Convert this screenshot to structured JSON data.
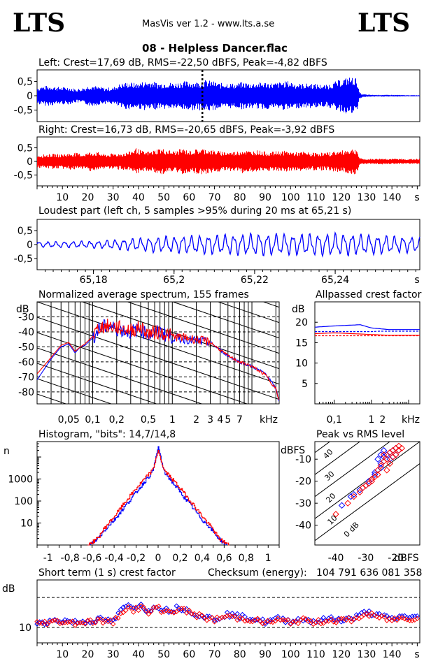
{
  "header": {
    "logo_left": "LTS",
    "logo_right": "LTS",
    "app_title": "MasVis ver 1.2 - www.lts.a.se",
    "track_title": "08 - Helpless Dancer.flac"
  },
  "colors": {
    "left": "#0000ff",
    "right": "#ff0000",
    "axis": "#000000"
  },
  "chart_data": [
    {
      "id": "left_waveform",
      "type": "area",
      "title": "Left: Crest=17,69 dB, RMS=-22,50 dBFS, Peak=-4,82 dBFS",
      "crest_db": 17.69,
      "rms_dbfs": -22.5,
      "peak_dbfs": -4.82,
      "ylim": [
        -0.9,
        0.9
      ],
      "xlim": [
        0,
        151
      ],
      "y_ticks": [
        "0,5",
        "0",
        "-0,5"
      ],
      "marker_at_s": 65.21,
      "series": [
        {
          "color": "#0000ff",
          "x": [
            0,
            3,
            6,
            9,
            12,
            15,
            18,
            21,
            24,
            27,
            30,
            33,
            36,
            39,
            42,
            45,
            48,
            51,
            54,
            57,
            60,
            63,
            66,
            69,
            72,
            75,
            78,
            81,
            84,
            87,
            90,
            93,
            96,
            99,
            102,
            105,
            108,
            111,
            114,
            117,
            120,
            123,
            126,
            127,
            128,
            130,
            133,
            136,
            139,
            142,
            145,
            148,
            151
          ],
          "amp": [
            0.3,
            0.35,
            0.34,
            0.3,
            0.31,
            0.24,
            0.28,
            0.38,
            0.32,
            0.28,
            0.3,
            0.44,
            0.48,
            0.44,
            0.5,
            0.52,
            0.44,
            0.48,
            0.45,
            0.5,
            0.52,
            0.48,
            0.55,
            0.52,
            0.44,
            0.46,
            0.42,
            0.48,
            0.44,
            0.46,
            0.48,
            0.44,
            0.48,
            0.52,
            0.44,
            0.42,
            0.44,
            0.4,
            0.38,
            0.48,
            0.58,
            0.66,
            0.62,
            0.12,
            0.06,
            0.04,
            0.03,
            0.03,
            0.03,
            0.03,
            0.02,
            0.02,
            0.02
          ]
        }
      ]
    },
    {
      "id": "right_waveform",
      "type": "area",
      "title": "Right: Crest=16,73 dB, RMS=-20,65 dBFS, Peak=-3,92 dBFS",
      "crest_db": 16.73,
      "rms_dbfs": -20.65,
      "peak_dbfs": -3.92,
      "ylim": [
        -0.9,
        0.9
      ],
      "xlim": [
        0,
        151
      ],
      "y_ticks": [
        "0,5",
        "0",
        "-0,5"
      ],
      "x_ticks": [
        "10",
        "20",
        "30",
        "40",
        "50",
        "60",
        "70",
        "80",
        "90",
        "100",
        "110",
        "120",
        "130",
        "140"
      ],
      "x_unit": "s",
      "series": [
        {
          "color": "#ff0000",
          "x": [
            0,
            3,
            6,
            9,
            12,
            15,
            18,
            21,
            24,
            27,
            30,
            33,
            36,
            39,
            42,
            45,
            48,
            51,
            54,
            57,
            60,
            63,
            66,
            69,
            72,
            75,
            78,
            81,
            84,
            87,
            90,
            93,
            96,
            99,
            102,
            105,
            108,
            111,
            114,
            117,
            120,
            123,
            126,
            127,
            128,
            130,
            133,
            136,
            139,
            142,
            145,
            148,
            151
          ],
          "amp": [
            0.24,
            0.26,
            0.28,
            0.27,
            0.3,
            0.32,
            0.28,
            0.36,
            0.34,
            0.26,
            0.3,
            0.3,
            0.36,
            0.5,
            0.36,
            0.38,
            0.5,
            0.44,
            0.38,
            0.48,
            0.4,
            0.46,
            0.48,
            0.42,
            0.38,
            0.36,
            0.36,
            0.44,
            0.38,
            0.42,
            0.36,
            0.36,
            0.4,
            0.38,
            0.34,
            0.36,
            0.32,
            0.34,
            0.32,
            0.38,
            0.4,
            0.46,
            0.48,
            0.14,
            0.1,
            0.09,
            0.1,
            0.11,
            0.1,
            0.1,
            0.09,
            0.09,
            0.1
          ]
        }
      ]
    },
    {
      "id": "loudest_part",
      "type": "line",
      "title": "Loudest part (left  ch, 5 samples >95% during 20 ms at 65,21 s)",
      "xlim": [
        65.166,
        65.261
      ],
      "ylim": [
        -0.9,
        0.9
      ],
      "y_ticks": [
        "0,5",
        "0",
        "-0,5"
      ],
      "x_ticks": [
        "65,18",
        "65,2",
        "65,22",
        "65,24"
      ],
      "x_unit": "s",
      "series": [
        {
          "color": "#0000ff",
          "envelope_x": [
            65.166,
            65.18,
            65.19,
            65.2,
            65.21,
            65.22,
            65.23,
            65.24,
            65.25,
            65.261
          ],
          "envelope_amp": [
            0.08,
            0.1,
            0.18,
            0.24,
            0.28,
            0.32,
            0.3,
            0.32,
            0.28,
            0.2
          ],
          "period_ms": 2.1
        }
      ]
    },
    {
      "id": "spectrum",
      "type": "line",
      "title": "Normalized average spectrum, 155 frames",
      "frames": 155,
      "ylabel": "dB",
      "xlabel": "kHz",
      "xlim_khz": [
        0.02,
        22
      ],
      "ylim": [
        -88,
        -20
      ],
      "y_ticks": [
        "-30",
        "-40",
        "-50",
        "-60",
        "-70",
        "-80"
      ],
      "x_ticks": [
        "0,05",
        "0,1",
        "0,2",
        "0,5",
        "1",
        "2",
        "3",
        "4",
        "5",
        "7"
      ],
      "series": [
        {
          "color": "#0000ff",
          "f_khz": [
            0.02,
            0.03,
            0.04,
            0.05,
            0.06,
            0.07,
            0.08,
            0.1,
            0.12,
            0.15,
            0.2,
            0.3,
            0.4,
            0.5,
            0.7,
            1,
            1.5,
            2,
            3,
            4,
            5,
            7,
            10,
            15,
            20,
            22
          ],
          "db": [
            -72,
            -58,
            -50,
            -48,
            -54,
            -50,
            -49,
            -44,
            -38,
            -36,
            -38,
            -40,
            -38,
            -42,
            -40,
            -44,
            -45,
            -46,
            -47,
            -52,
            -56,
            -60,
            -63,
            -68,
            -78,
            -86
          ]
        },
        {
          "color": "#ff0000",
          "f_khz": [
            0.02,
            0.03,
            0.04,
            0.05,
            0.06,
            0.07,
            0.08,
            0.1,
            0.12,
            0.15,
            0.2,
            0.3,
            0.4,
            0.5,
            0.7,
            1,
            1.5,
            2,
            3,
            4,
            5,
            7,
            10,
            15,
            20,
            22
          ],
          "db": [
            -68,
            -57,
            -49,
            -47,
            -53,
            -50,
            -48,
            -43,
            -37,
            -36,
            -37,
            -39,
            -37,
            -41,
            -40,
            -43,
            -44,
            -45,
            -47,
            -52,
            -56,
            -60,
            -63,
            -69,
            -78,
            -86
          ]
        }
      ]
    },
    {
      "id": "allpassed_crest",
      "type": "line",
      "title": "Allpassed crest factor",
      "ylabel": "dB",
      "xlabel": "kHz",
      "xlim_khz": [
        0.03,
        20
      ],
      "ylim": [
        0,
        25
      ],
      "y_ticks": [
        "20",
        "15",
        "10",
        "5"
      ],
      "x_ticks": [
        "0,1",
        "1",
        "2"
      ],
      "series": [
        {
          "color": "#0000ff",
          "f_khz": [
            0.03,
            0.1,
            0.5,
            1,
            3,
            20
          ],
          "db": [
            18.8,
            19.1,
            19.4,
            18.6,
            18.2,
            18.2
          ]
        },
        {
          "color": "#0000ff",
          "style": "dashed",
          "f_khz": [
            0.03,
            1,
            1.5,
            20
          ],
          "db": [
            17.7,
            17.7,
            17.8,
            17.8
          ]
        },
        {
          "color": "#ff0000",
          "f_khz": [
            0.03,
            0.1,
            1,
            3,
            20
          ],
          "db": [
            17.2,
            17.4,
            17.0,
            16.8,
            16.8
          ]
        },
        {
          "color": "#ff0000",
          "style": "dashed",
          "f_khz": [
            0.03,
            1,
            20
          ],
          "db": [
            16.7,
            16.7,
            16.7
          ]
        }
      ]
    },
    {
      "id": "histogram",
      "type": "line",
      "title": "Histogram, \"bits\": 14,7/14,8",
      "ylabel": "n",
      "yscale": "log",
      "xlim": [
        -1.1,
        1.1
      ],
      "x_ticks": [
        "-1",
        "-0,8",
        "-0,6",
        "-0,4",
        "-0,2",
        "0",
        "0,2",
        "0,4",
        "0,6",
        "0,8",
        "1"
      ],
      "y_ticks": [
        "1000",
        "100",
        "10"
      ],
      "series": [
        {
          "color": "#0000ff",
          "x": [
            -0.62,
            -0.55,
            -0.5,
            -0.45,
            -0.4,
            -0.3,
            -0.2,
            -0.1,
            -0.05,
            0,
            0.05,
            0.1,
            0.2,
            0.3,
            0.4,
            0.45,
            0.5,
            0.55,
            0.62
          ],
          "n": [
            1,
            2,
            4,
            8,
            14,
            60,
            250,
            1100,
            2200,
            30000,
            2200,
            1100,
            250,
            60,
            14,
            8,
            4,
            2,
            1
          ]
        },
        {
          "color": "#ff0000",
          "x": [
            -0.64,
            -0.55,
            -0.5,
            -0.45,
            -0.4,
            -0.3,
            -0.2,
            -0.1,
            -0.05,
            0,
            0.05,
            0.1,
            0.2,
            0.3,
            0.4,
            0.45,
            0.5,
            0.55,
            0.64
          ],
          "n": [
            1,
            2,
            5,
            10,
            20,
            90,
            380,
            1400,
            2600,
            20000,
            2600,
            1400,
            380,
            90,
            20,
            10,
            5,
            2,
            1
          ]
        }
      ]
    },
    {
      "id": "peak_vs_rms",
      "type": "scatter",
      "title": "Peak vs RMS level",
      "xlabel": "dBFS",
      "ylabel": "dBFS",
      "xlim": [
        -47,
        -12
      ],
      "ylim": [
        -49,
        -2
      ],
      "x_ticks": [
        "-40",
        "-30",
        "-20"
      ],
      "y_ticks": [
        "-10",
        "-20",
        "-30",
        "-40"
      ],
      "diagonal_labels": [
        "40",
        "30",
        "20",
        "10",
        "0 dB"
      ],
      "series": [
        {
          "color": "#0000ff",
          "x": [
            -38,
            -35,
            -34,
            -32,
            -30,
            -29,
            -28,
            -27,
            -26,
            -25,
            -25,
            -24,
            -24,
            -23,
            -22,
            -22,
            -21,
            -21,
            -20,
            -20,
            -19,
            -25,
            -27,
            -29
          ],
          "y": [
            -31,
            -27,
            -26,
            -24,
            -22,
            -21,
            -19,
            -16,
            -10,
            -8,
            -12,
            -9,
            -6,
            -8,
            -10,
            -7,
            -9,
            -6,
            -5,
            -8,
            -6,
            -14,
            -17,
            -20
          ]
        },
        {
          "color": "#ff0000",
          "x": [
            -40,
            -36,
            -34,
            -32,
            -31,
            -29,
            -28,
            -27,
            -26,
            -25,
            -24,
            -24,
            -23,
            -22,
            -22,
            -21,
            -21,
            -20,
            -20,
            -19,
            -19,
            -23,
            -26,
            -28,
            -30,
            -18
          ],
          "y": [
            -35,
            -30,
            -27,
            -25,
            -23,
            -21,
            -20,
            -18,
            -15,
            -13,
            -11,
            -8,
            -10,
            -7,
            -12,
            -6,
            -9,
            -5,
            -8,
            -6,
            -4,
            -15,
            -17,
            -19,
            -22,
            -5
          ]
        }
      ]
    },
    {
      "id": "short_term_crest",
      "type": "scatter",
      "title": "Short term (1 s) crest factor",
      "ylabel": "dB",
      "yscale": "log",
      "xlim": [
        0,
        151
      ],
      "x_ticks": [
        "10",
        "20",
        "30",
        "40",
        "50",
        "60",
        "70",
        "80",
        "90",
        "100",
        "110",
        "120",
        "130",
        "140"
      ],
      "x_unit": "s",
      "y_ticks": [
        "10"
      ],
      "series": [
        {
          "color": "#0000ff",
          "x": [
            0,
            5,
            10,
            15,
            20,
            25,
            30,
            35,
            38,
            41,
            44,
            47,
            50,
            53,
            56,
            59,
            62,
            65,
            70,
            75,
            80,
            85,
            90,
            95,
            100,
            105,
            110,
            115,
            120,
            125,
            130,
            135,
            140,
            145,
            150
          ],
          "y": [
            11.2,
            11.5,
            11.8,
            11.3,
            11.6,
            12.0,
            11.4,
            16.5,
            15.8,
            17.2,
            14.2,
            16.8,
            15.2,
            14.8,
            16.0,
            15.0,
            14.1,
            13.0,
            12.1,
            13.6,
            12.8,
            12.4,
            11.3,
            12.2,
            11.6,
            12.1,
            11.5,
            12.2,
            12.0,
            12.4,
            14.3,
            13.1,
            12.2,
            13.0,
            12.6
          ]
        },
        {
          "color": "#ff0000",
          "x": [
            0,
            5,
            10,
            15,
            20,
            25,
            30,
            35,
            38,
            41,
            44,
            47,
            50,
            53,
            56,
            59,
            62,
            65,
            70,
            75,
            80,
            85,
            90,
            95,
            100,
            105,
            110,
            115,
            120,
            125,
            130,
            135,
            140,
            145,
            150
          ],
          "y": [
            11.0,
            11.3,
            11.5,
            11.1,
            11.4,
            11.7,
            11.2,
            15.8,
            15.0,
            16.0,
            13.8,
            16.0,
            14.6,
            14.3,
            15.4,
            14.5,
            13.6,
            12.7,
            11.9,
            13.0,
            12.3,
            12.0,
            11.1,
            11.8,
            11.3,
            11.8,
            11.2,
            11.9,
            11.7,
            12.0,
            13.6,
            12.6,
            11.9,
            12.5,
            12.2
          ]
        }
      ]
    }
  ],
  "checksum": {
    "label": "Checksum (energy):",
    "value": "104 791 636 081 358"
  }
}
